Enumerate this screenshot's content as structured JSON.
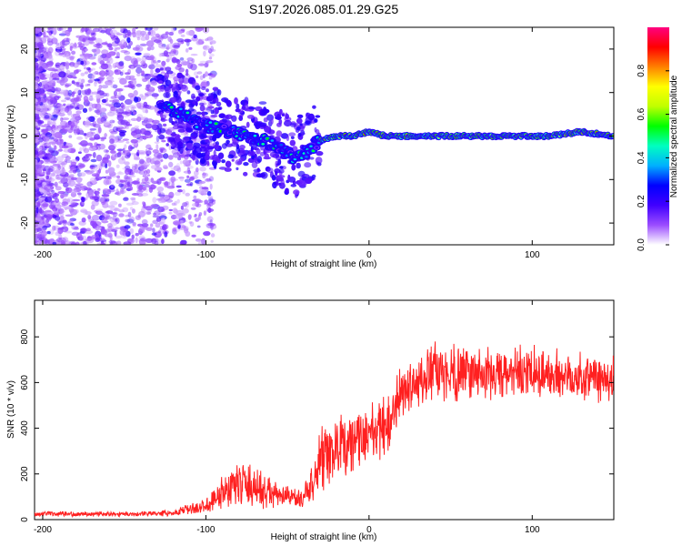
{
  "title": "S197.2026.085.01.29.G25",
  "chart_data": [
    {
      "type": "heatmap",
      "xlabel": "Height of straight line (km)",
      "ylabel": "Frequency (Hz)",
      "xlim": [
        -205,
        150
      ],
      "ylim": [
        -25,
        25
      ],
      "xticks": [
        -200,
        -100,
        0,
        100
      ],
      "yticks": [
        -20,
        -10,
        0,
        10,
        20
      ],
      "colorbar": {
        "label": "Normalized spectral amplitude",
        "range": [
          0.0,
          1.0
        ],
        "ticks": [
          0.0,
          0.2,
          0.4,
          0.6,
          0.8
        ],
        "colors": [
          "#ffffff",
          "#9b4dff",
          "#4000ff",
          "#0000ff",
          "#00b0ff",
          "#00ffc0",
          "#00ff00",
          "#c0ff00",
          "#ffff00",
          "#ff8000",
          "#ff0000",
          "#ff0080"
        ]
      },
      "signal_track": {
        "height_km": [
          -125,
          -115,
          -105,
          -95,
          -85,
          -75,
          -65,
          -55,
          -45,
          -40,
          -30,
          -20,
          -10,
          0,
          10,
          30,
          60,
          90,
          110,
          130,
          150
        ],
        "frequency_hz": [
          7,
          5,
          3,
          2,
          1,
          0,
          -1,
          -3,
          -5,
          -4,
          -1,
          0,
          0,
          1,
          0,
          0,
          0,
          0,
          0,
          1,
          0
        ]
      }
    },
    {
      "type": "line",
      "xlabel": "Height of straight line (km)",
      "ylabel": "SNR (10 * v/v)",
      "xlim": [
        -205,
        150
      ],
      "ylim": [
        0,
        960
      ],
      "xticks": [
        -200,
        -100,
        0,
        100
      ],
      "yticks": [
        0,
        200,
        400,
        600,
        800
      ],
      "color": "#ff2020",
      "envelope": {
        "height_km": [
          -205,
          -140,
          -120,
          -100,
          -90,
          -80,
          -70,
          -60,
          -50,
          -40,
          -30,
          -20,
          -10,
          0,
          10,
          20,
          40,
          60,
          80,
          100,
          120,
          150
        ],
        "snr_mean": [
          25,
          25,
          30,
          60,
          120,
          160,
          140,
          110,
          100,
          90,
          240,
          300,
          340,
          380,
          400,
          560,
          640,
          650,
          630,
          640,
          630,
          620
        ],
        "snr_spread": [
          12,
          12,
          15,
          40,
          90,
          110,
          110,
          80,
          50,
          50,
          170,
          180,
          160,
          140,
          170,
          130,
          150,
          150,
          130,
          140,
          130,
          140
        ]
      }
    }
  ]
}
